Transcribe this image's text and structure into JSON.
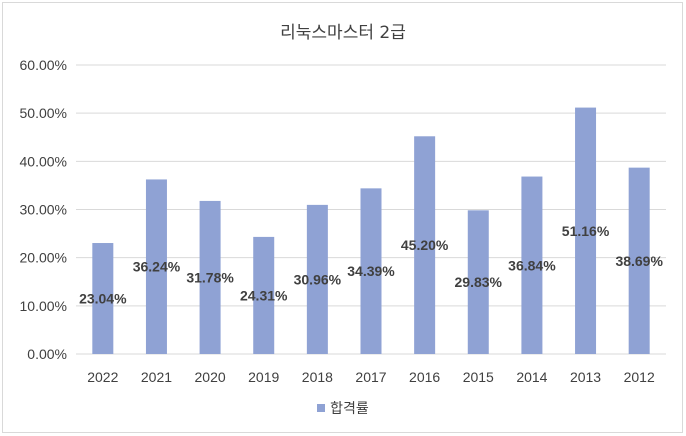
{
  "chart_data": {
    "type": "bar",
    "title": "리눅스마스터 2급",
    "categories": [
      "2022",
      "2021",
      "2020",
      "2019",
      "2018",
      "2017",
      "2016",
      "2015",
      "2014",
      "2013",
      "2012"
    ],
    "series": [
      {
        "name": "합격률",
        "values": [
          23.04,
          36.24,
          31.78,
          24.31,
          30.96,
          34.39,
          45.2,
          29.83,
          36.84,
          51.16,
          38.69
        ],
        "labels": [
          "23.04%",
          "36.24%",
          "31.78%",
          "24.31%",
          "30.96%",
          "34.39%",
          "45.20%",
          "29.83%",
          "36.84%",
          "51.16%",
          "38.69%"
        ],
        "color": "#8fa2d4"
      }
    ],
    "yticks": [
      "0.00%",
      "10.00%",
      "20.00%",
      "30.00%",
      "40.00%",
      "50.00%",
      "60.00%"
    ],
    "ylim": [
      0,
      60
    ],
    "grid": true,
    "legend_position": "bottom"
  },
  "colors": {
    "grid": "#d9d9d9",
    "text": "#404040",
    "bar": "#8fa2d4"
  }
}
